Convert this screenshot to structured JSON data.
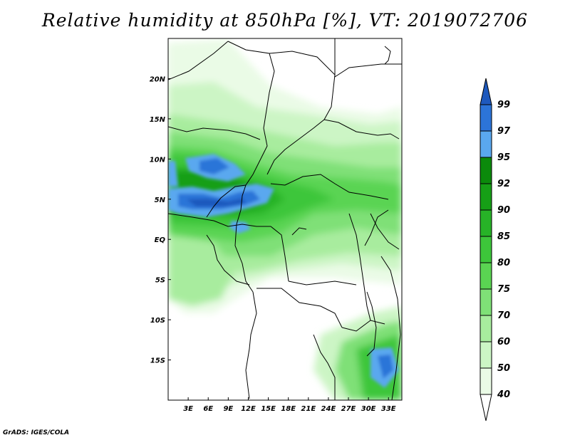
{
  "title": "Relative humidity at 850hPa [%], VT: 2019072706",
  "footer": "GrADS: IGES/COLA",
  "map": {
    "lon_range": [
      0,
      35
    ],
    "lat_range": [
      -20,
      25
    ],
    "lon_ticks": [
      {
        "value": 3,
        "label": "3E"
      },
      {
        "value": 6,
        "label": "6E"
      },
      {
        "value": 9,
        "label": "9E"
      },
      {
        "value": 12,
        "label": "12E"
      },
      {
        "value": 15,
        "label": "15E"
      },
      {
        "value": 18,
        "label": "18E"
      },
      {
        "value": 21,
        "label": "21E"
      },
      {
        "value": 24,
        "label": "24E"
      },
      {
        "value": 27,
        "label": "27E"
      },
      {
        "value": 30,
        "label": "30E"
      },
      {
        "value": 33,
        "label": "33E"
      }
    ],
    "lat_ticks": [
      {
        "value": 20,
        "label": "20N"
      },
      {
        "value": 15,
        "label": "15N"
      },
      {
        "value": 10,
        "label": "10N"
      },
      {
        "value": 5,
        "label": "5N"
      },
      {
        "value": 0,
        "label": "EQ"
      },
      {
        "value": -5,
        "label": "5S"
      },
      {
        "value": -10,
        "label": "10S"
      },
      {
        "value": -15,
        "label": "15S"
      }
    ]
  },
  "colorbar": {
    "levels": [
      "40",
      "50",
      "60",
      "70",
      "75",
      "80",
      "85",
      "90",
      "92",
      "95",
      "97",
      "99"
    ],
    "colors": [
      "#eafbe6",
      "#ccf5c5",
      "#a8ec9e",
      "#7fe077",
      "#5ad452",
      "#3dc63a",
      "#27b327",
      "#169f16",
      "#0b8a0b",
      "#5aa8ef",
      "#2c74d8",
      "#1e59bd"
    ]
  }
}
